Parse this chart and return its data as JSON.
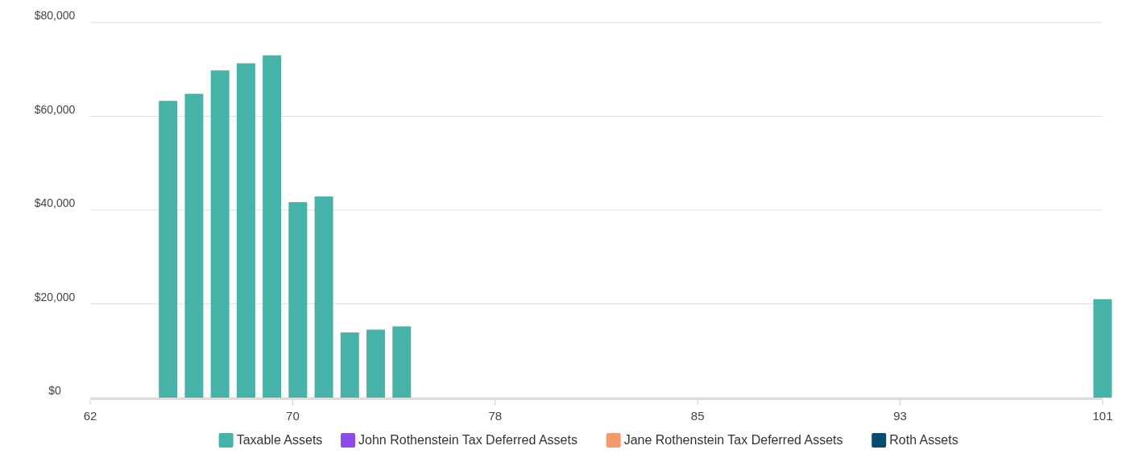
{
  "chart_data": {
    "type": "bar",
    "x": [
      65,
      66,
      67,
      68,
      69,
      70,
      71,
      72,
      73,
      74,
      101
    ],
    "xlim": [
      62,
      101
    ],
    "xticks": [
      62,
      {
        "value": 69.8,
        "label": "70"
      },
      {
        "value": 77.6,
        "label": "78"
      },
      {
        "value": 85.4,
        "label": "85"
      },
      {
        "value": 93.2,
        "label": "93"
      },
      101
    ],
    "ylim": [
      0,
      80000
    ],
    "yticks": [
      {
        "value": 0,
        "label": "$0"
      },
      {
        "value": 20000,
        "label": "$20,000"
      },
      {
        "value": 40000,
        "label": "$40,000"
      },
      {
        "value": 60000,
        "label": "$60,000"
      },
      {
        "value": 80000,
        "label": "$80,000"
      }
    ],
    "grid": "y",
    "legend": "bottom",
    "series": [
      {
        "name": "Taxable Assets",
        "color": "#47b3a8",
        "values": [
          63300,
          64800,
          69800,
          71300,
          73000,
          41700,
          42900,
          13900,
          14500,
          15200,
          21000
        ]
      },
      {
        "name": "John Rothenstein Tax Deferred Assets",
        "color": "#8a4be8",
        "values": [
          null,
          null,
          null,
          null,
          null,
          null,
          null,
          null,
          null,
          null,
          null
        ]
      },
      {
        "name": "Jane Rothenstein Tax Deferred Assets",
        "color": "#f4996b",
        "values": [
          null,
          null,
          null,
          null,
          null,
          null,
          null,
          null,
          null,
          null,
          null
        ]
      },
      {
        "name": "Roth Assets",
        "color": "#0a4a6e",
        "values": [
          null,
          null,
          null,
          null,
          null,
          null,
          null,
          null,
          null,
          null,
          null
        ]
      }
    ]
  }
}
